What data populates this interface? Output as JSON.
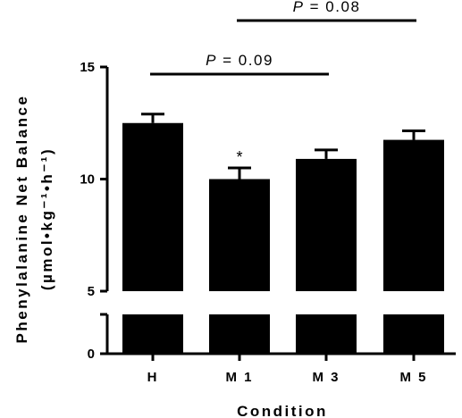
{
  "chart_data": {
    "type": "bar",
    "categories": [
      "H",
      "M 1",
      "M 3",
      "M 5"
    ],
    "values": [
      12.5,
      10.0,
      10.9,
      11.75
    ],
    "errors": [
      0.4,
      0.5,
      0.4,
      0.4
    ],
    "xlabel": "Condition",
    "ylabel_line1": "Phenylalanine Net Balance",
    "ylabel_line2": "(µmol•kg⁻¹•h⁻¹)",
    "yticks": [
      "0",
      "5",
      "10",
      "15"
    ],
    "ylim_upper": [
      5,
      15
    ],
    "ylim_lower": [
      0,
      3
    ],
    "axis_break": true,
    "significance_marks": [
      {
        "category": "M 1",
        "symbol": "*"
      }
    ],
    "comparisons": [
      {
        "from": "H",
        "to": "M 3",
        "p_label": "P",
        "p_value": "= 0.09"
      },
      {
        "from": "M 1",
        "to": "M 5",
        "p_label": "P",
        "p_value": "= 0.08"
      }
    ],
    "bar_color": "#000000",
    "grid": false
  }
}
